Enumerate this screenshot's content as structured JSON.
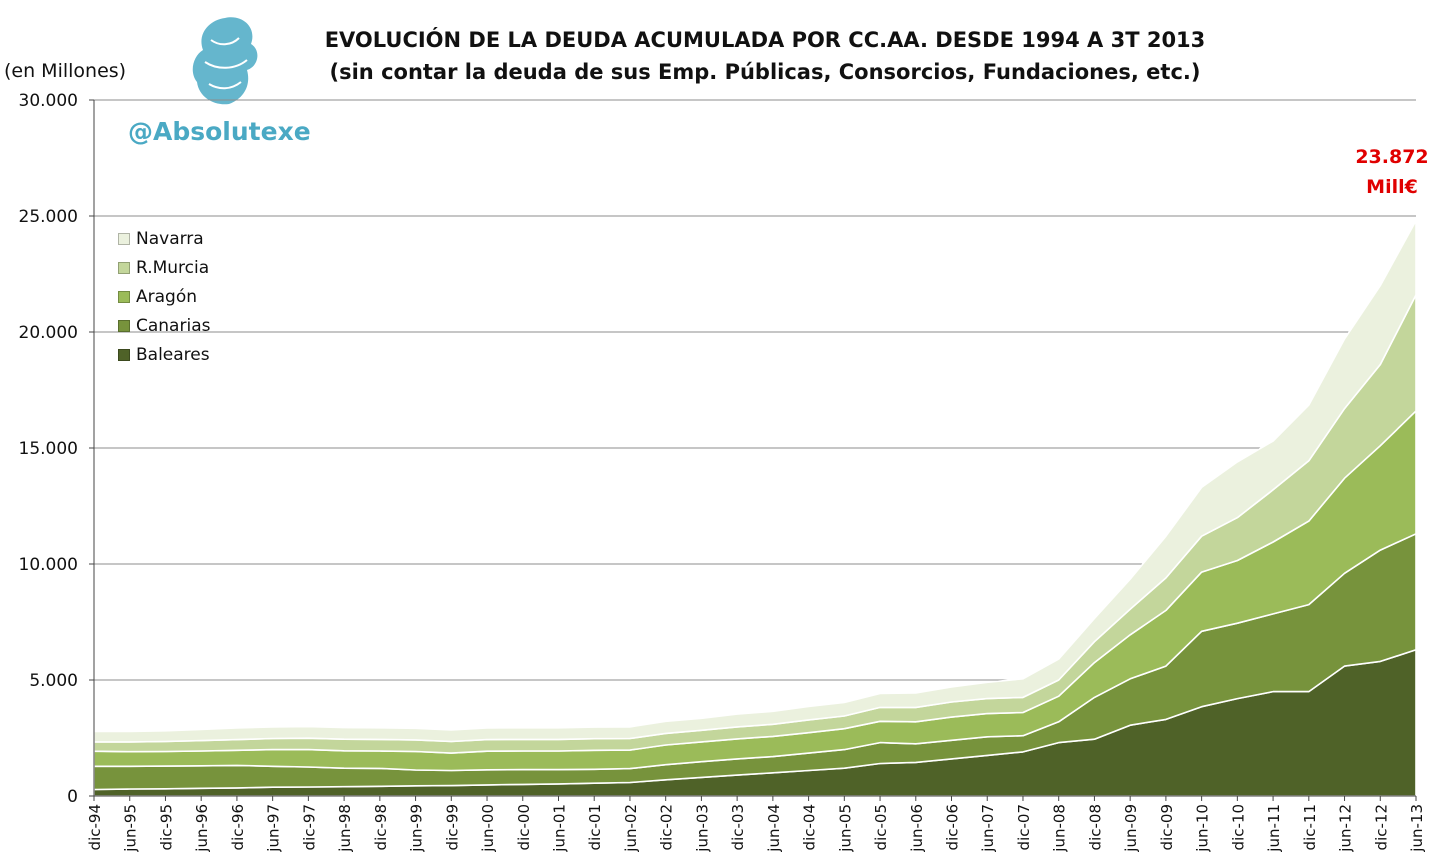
{
  "title_line1": "EVOLUCIÓN DE LA DEUDA ACUMULADA POR CC.AA. DESDE 1994 A 3T 2013",
  "title_line2": "(sin contar la deuda de sus Emp. Públicas, Consorcios, Fundaciones, etc.)",
  "handle": "@Absolutexe",
  "callout_value": "23.872",
  "callout_unit": "Mill€",
  "chart_data": {
    "type": "area",
    "stacked": true,
    "ylabel": "(en Millones)",
    "ylim": [
      0,
      30000
    ],
    "yticks": [
      "0",
      "5.000",
      "10.000",
      "15.000",
      "20.000",
      "25.000",
      "30.000"
    ],
    "grid": true,
    "legend_position": "top-left",
    "x": [
      "dic-94",
      "jun-95",
      "dic-95",
      "jun-96",
      "dic-96",
      "jun-97",
      "dic-97",
      "jun-98",
      "dic-98",
      "jun-99",
      "dic-99",
      "jun-00",
      "dic-00",
      "jun-01",
      "dic-01",
      "jun-02",
      "dic-02",
      "jun-03",
      "dic-03",
      "jun-04",
      "dic-04",
      "jun-05",
      "dic-05",
      "jun-06",
      "dic-06",
      "jun-07",
      "dic-07",
      "jun-08",
      "dic-08",
      "jun-09",
      "dic-09",
      "jun-10",
      "dic-10",
      "jun-11",
      "dic-11",
      "jun-12",
      "dic-12",
      "jun-13"
    ],
    "series": [
      {
        "name": "Baleares",
        "color": "#4f6228",
        "values": [
          280,
          300,
          310,
          330,
          350,
          380,
          390,
          400,
          420,
          440,
          450,
          480,
          500,
          520,
          550,
          580,
          700,
          800,
          900,
          1000,
          1100,
          1200,
          1400,
          1450,
          1600,
          1750,
          1900,
          2300,
          2450,
          3050,
          3300,
          3850,
          4200,
          4500,
          4500,
          5600,
          5800,
          6300
        ]
      },
      {
        "name": "Canarias",
        "color": "#77933c",
        "values": [
          1000,
          980,
          980,
          970,
          970,
          900,
          860,
          800,
          770,
          680,
          650,
          650,
          640,
          620,
          600,
          600,
          650,
          680,
          700,
          700,
          750,
          800,
          900,
          800,
          800,
          800,
          700,
          900,
          1800,
          2000,
          2300,
          3250,
          3250,
          3350,
          3750,
          4000,
          4800,
          5000
        ]
      },
      {
        "name": "Aragón",
        "color": "#9bbb59",
        "values": [
          650,
          630,
          630,
          640,
          650,
          720,
          750,
          750,
          750,
          800,
          750,
          800,
          800,
          800,
          820,
          800,
          850,
          850,
          860,
          870,
          880,
          900,
          920,
          950,
          1000,
          1000,
          1000,
          1100,
          1500,
          1900,
          2400,
          2550,
          2700,
          3100,
          3600,
          4100,
          4500,
          5300
        ]
      },
      {
        "name": "R.Murcia",
        "color": "#c3d69b",
        "values": [
          400,
          420,
          430,
          450,
          460,
          480,
          490,
          500,
          500,
          500,
          500,
          500,
          500,
          500,
          500,
          500,
          500,
          500,
          520,
          520,
          550,
          550,
          600,
          620,
          650,
          650,
          650,
          700,
          900,
          1100,
          1400,
          1550,
          1850,
          2250,
          2600,
          3000,
          3500,
          5000
        ]
      },
      {
        "name": "Navarra",
        "color": "#ebf1de",
        "values": [
          450,
          450,
          460,
          480,
          500,
          500,
          500,
          500,
          500,
          500,
          500,
          500,
          500,
          500,
          500,
          500,
          520,
          520,
          550,
          560,
          580,
          580,
          600,
          620,
          650,
          700,
          800,
          900,
          1000,
          1300,
          1800,
          2100,
          2400,
          2100,
          2400,
          3000,
          3400,
          3200
        ]
      }
    ]
  }
}
